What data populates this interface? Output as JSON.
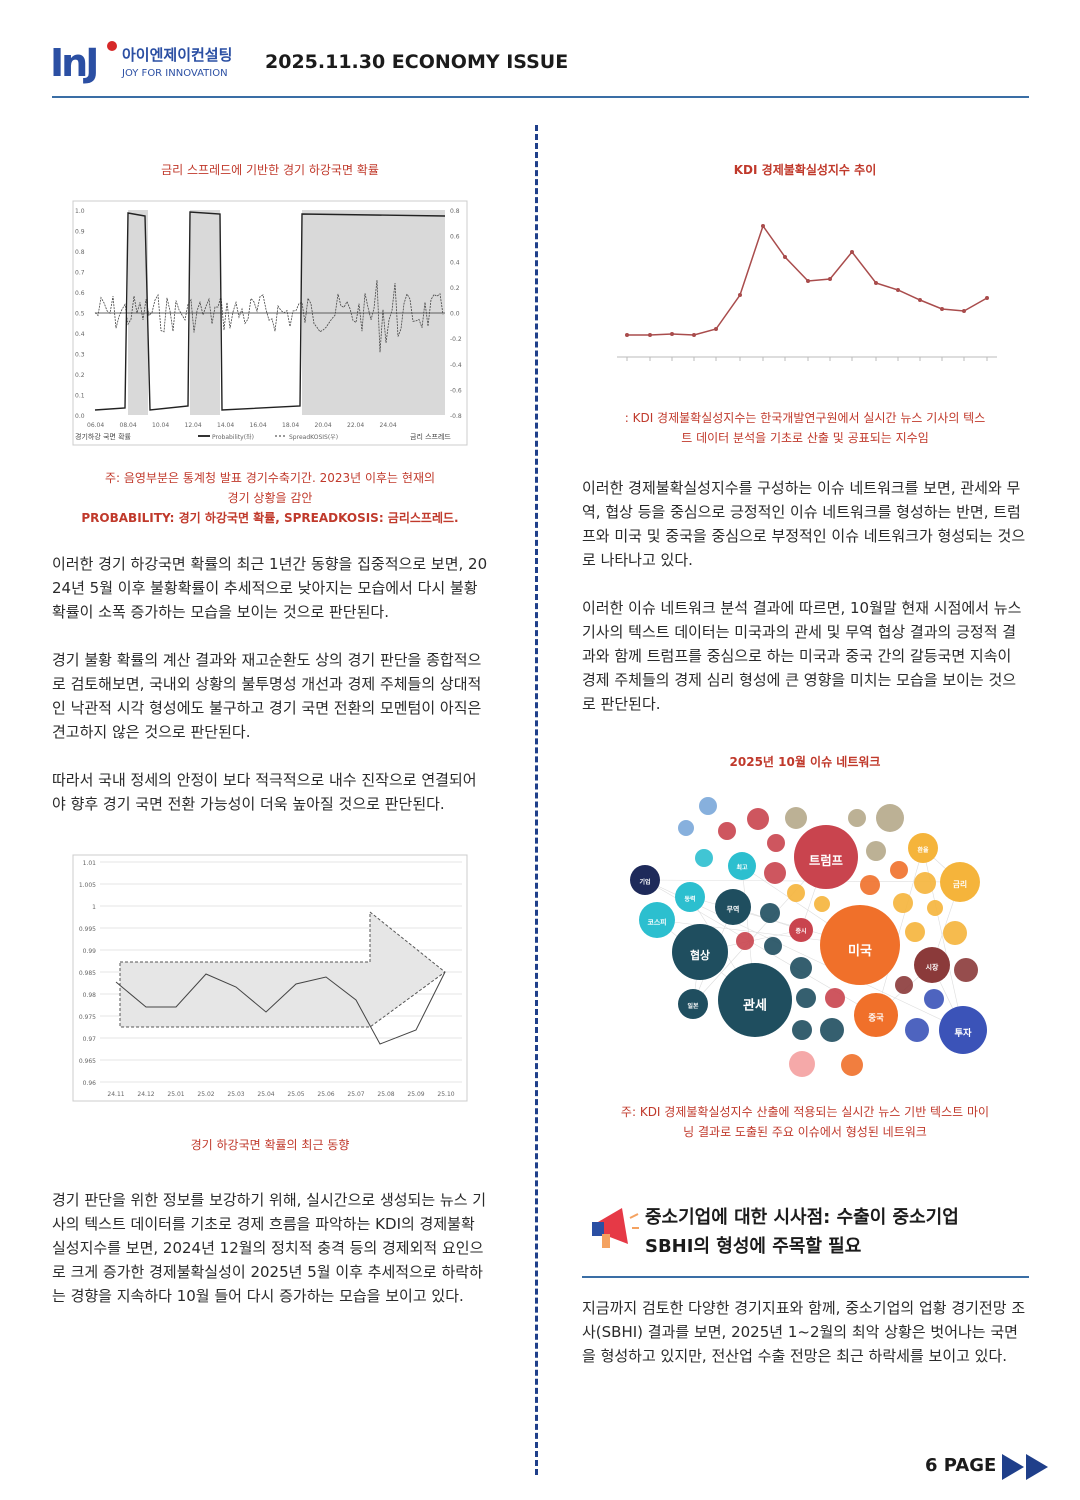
{
  "header": {
    "logo": "InJ",
    "brand": "아이엔제이컨설팅",
    "tagline": "JOY FOR INNOVATION",
    "issue": "2025.11.30 ECONOMY ISSUE"
  },
  "left": {
    "figure1": {
      "title": "금리 스프레드에 기반한 경기 하강국면 확률",
      "y_ticks": [
        "1.0",
        "0.9",
        "0.8",
        "0.7",
        "0.6",
        "0.5",
        "0.4",
        "0.3",
        "0.2",
        "0.1",
        "0.0"
      ],
      "y2_ticks": [
        "0.8",
        "0.6",
        "0.4",
        "0.2",
        "0.0",
        "-0.2",
        "-0.4",
        "-0.6",
        "-0.8"
      ],
      "x_ticks": [
        "06.04",
        "08.04",
        "10.04",
        "12.04",
        "14.04",
        "16.04",
        "18.04",
        "20.04",
        "22.04",
        "24.04"
      ],
      "y_label": "경기하강 국면 확률",
      "legend": [
        "Probability(좌)",
        "SpreadKOSIS(우)"
      ],
      "y2_label": "금리 스프레드",
      "notes": [
        "주: 음영부분은 통계청 발표 경기수축기간. 2023년 이후는 현재의",
        "경기 상황을 감안",
        "PROBABILITY: 경기 하강국면 확률, SPREADKOSIS: 금리스프레드."
      ]
    },
    "paragraphs": [
      "이러한 경기 하강국면 확률의 최근 1년간 동향을 집중적으로 보면, 2024년 5월 이후 불황확률이 추세적으로 낮아지는 모습에서 다시 불황확률이 소폭 증가하는 모습을 보이는 것으로 판단된다.",
      "경기 불황 확률의 계산 결과와  재고순환도 상의 경기 판단을 종합적으로 검토해보면, 국내외 상황의 불투명성 개선과 경제 주체들의 상대적인 낙관적 시각 형성에도 불구하고 경기 국면 전환의 모멘텀이 아직은 견고하지 않은 것으로 판단된다.",
      "따라서 국내 정세의 안정이 보다 적극적으로 내수 진작으로 연결되어야 향후 경기 국면 전환 가능성이 더욱 높아질 것으로 판단된다."
    ],
    "figure2": {
      "y_ticks": [
        "1.01",
        "1.005",
        "1",
        "0.995",
        "0.99",
        "0.985",
        "0.98",
        "0.975",
        "0.97",
        "0.965",
        "0.96"
      ],
      "x_ticks": [
        "24.11",
        "24.12",
        "25.01",
        "25.02",
        "25.03",
        "25.04",
        "25.05",
        "25.06",
        "25.07",
        "25.08",
        "25.09",
        "25.10"
      ],
      "caption": "경기 하강국면 확률의 최근 동향"
    },
    "paragraph_last": "경기 판단을 위한 정보를 보강하기 위해, 실시간으로 생성되는 뉴스 기사의 텍스트 데이터를 기초로 경제 흐름을 파악하는 KDI의 경제불확실성지수를 보면, 2024년 12월의 정치적 충격 등의 경제외적 요인으로 크게 증가한 경제불확실성이 2025년 5월 이후 추세적으로 하락하는 경향을 지속하다 10월 들어 다시 증가하는 모습을 보이고 있다."
  },
  "right": {
    "figure3": {
      "title": "KDI 경제불확실성지수 추이",
      "notes": [
        ": KDI 경제불확실성지수는 한국개발연구원에서 실시간 뉴스 기사의 텍스",
        "트 데이터 분석을 기초로 산출 및 공표되는 지수임"
      ]
    },
    "paragraphs": [
      "이러한 경제불확실성지수를 구성하는 이슈 네트워크를 보면, 관세와 무역, 협상 등을 중심으로 긍정적인 이슈 네트워크를 형성하는 반면, 트럼프와 미국 및 중국을 중심으로 부정적인 이슈 네트워크가 형성되는 것으로 나타나고 있다.",
      "이러한 이슈 네트워크 분석 결과에 따르면, 10월말 현재 시점에서 뉴스 기사의 텍스트 데이터는 미국과의 관세 및 무역 협상 결과의 긍정적 결과와 함께 트럼프를 중심으로 하는 미국과 중국 간의 갈등국면 지속이 경제 주체들의 경제 심리 형성에 큰 영향을 미치는 모습을 보이는 것으로 판단된다."
    ],
    "figure4": {
      "title": "2025년 10월 이슈 네트워크",
      "nodes": [
        "트럼프",
        "미국",
        "관세",
        "협상",
        "무역",
        "중국",
        "투자",
        "금리",
        "기업",
        "코스피",
        "일본",
        "시장",
        "최고",
        "증시",
        "환율",
        "동력"
      ],
      "notes": [
        "주: KDI 경제불확실성지수 산출에 적용되는 실시간 뉴스 기반 텍스트 마이",
        "닝 결과로 도출된 주요 이슈에서 형성된 네트워크"
      ]
    },
    "heading": [
      "중소기업에 대한 시사점: 수출이 중소기업",
      "SBHI의 형성에 주목할 필요"
    ],
    "paragraph_last": "지금까지 검토한 다양한 경기지표와 함께, 중소기업의 업황 경기전망 조사(SBHI) 결과를 보면, 2025년 1~2월의 최악 상황은 벗어나는 국면을 형성하고 있지만, 전산업 수출 전망은 최근 하락세를 보이고 있다."
  },
  "footer": {
    "page": "6 PAGE"
  }
}
